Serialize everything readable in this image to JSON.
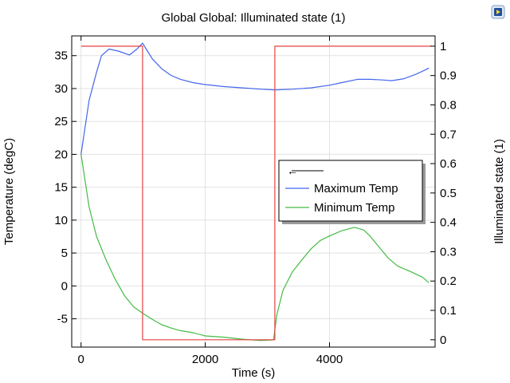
{
  "title": "Global  Global: Illuminated state (1)",
  "app_icon": "comsol-logo-icon",
  "chart_data": {
    "type": "line",
    "title": "Global  Global: Illuminated state (1)",
    "xlabel": "Time (s)",
    "ylabel": "Temperature (degC)",
    "y2label": "Illuminated state (1)",
    "xlim": [
      -150,
      5700
    ],
    "ylim": [
      -9.3,
      38
    ],
    "y2lim": [
      -0.025,
      1.035
    ],
    "x_ticks": [
      0,
      2000,
      4000
    ],
    "y_ticks": [
      -5,
      0,
      5,
      10,
      15,
      20,
      25,
      30,
      35
    ],
    "y2_ticks": [
      0,
      0.1,
      0.2,
      0.3,
      0.4,
      0.5,
      0.6,
      0.7,
      0.8,
      0.9,
      1
    ],
    "grid": true,
    "legend": {
      "placement": "middle-right",
      "arrow_glyph": "←",
      "entries": [
        "Maximum Temp",
        "Minimum Temp"
      ]
    },
    "series": [
      {
        "name": "Maximum Temp",
        "axis": "left",
        "color": "#4466ee",
        "x": [
          0,
          130,
          250,
          330,
          450,
          600,
          780,
          900,
          990,
          1050,
          1150,
          1300,
          1450,
          1600,
          1800,
          2000,
          2300,
          2600,
          2900,
          3120,
          3400,
          3700,
          4000,
          4200,
          4450,
          4650,
          4850,
          5000,
          5200,
          5400,
          5600
        ],
        "y": [
          20.0,
          28.2,
          32.5,
          35.0,
          36.0,
          35.7,
          35.1,
          36.0,
          36.9,
          36.0,
          34.5,
          33.0,
          32.0,
          31.4,
          30.9,
          30.6,
          30.3,
          30.1,
          29.9,
          29.8,
          29.9,
          30.1,
          30.5,
          30.9,
          31.4,
          31.4,
          31.3,
          31.2,
          31.5,
          32.2,
          33.1
        ]
      },
      {
        "name": "Minimum Temp",
        "axis": "left",
        "color": "#44bb44",
        "x": [
          0,
          130,
          250,
          400,
          550,
          700,
          850,
          1000,
          1150,
          1300,
          1450,
          1600,
          1800,
          2000,
          2300,
          2600,
          2900,
          3100,
          3150,
          3250,
          3400,
          3550,
          3700,
          3850,
          4000,
          4200,
          4400,
          4550,
          4650,
          4800,
          4950,
          5100,
          5300,
          5500,
          5600
        ],
        "y": [
          20.0,
          12.0,
          7.5,
          4.0,
          1.0,
          -1.5,
          -3.2,
          -4.2,
          -5.1,
          -5.9,
          -6.4,
          -6.8,
          -7.1,
          -7.6,
          -7.8,
          -8.1,
          -8.3,
          -8.2,
          -4.5,
          -0.7,
          2.1,
          3.9,
          5.6,
          6.9,
          7.6,
          8.4,
          8.9,
          8.5,
          7.6,
          5.9,
          4.2,
          3.0,
          2.2,
          1.3,
          0.5
        ]
      },
      {
        "name": "Illuminated state (1)",
        "axis": "right",
        "color": "#e84040",
        "x": [
          0,
          990,
          990,
          3120,
          3120,
          5640
        ],
        "y": [
          1,
          1,
          0,
          0,
          1,
          1
        ]
      }
    ]
  }
}
